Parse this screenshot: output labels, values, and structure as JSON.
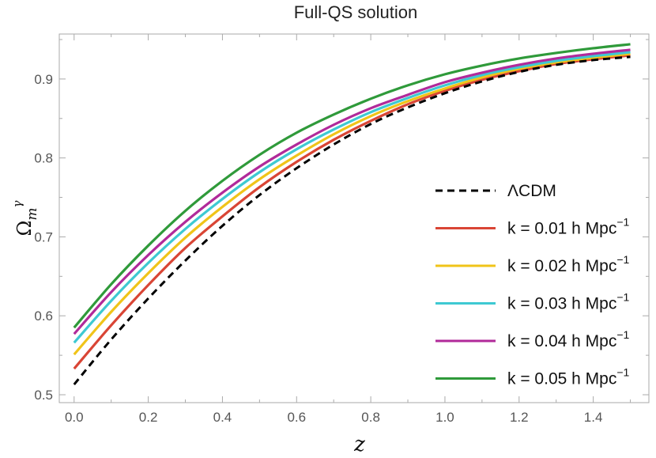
{
  "chart_data": {
    "type": "line",
    "title": "Full-QS solution",
    "xlabel": "z",
    "ylabel": {
      "base": "Ω",
      "subscript": "m",
      "superscript": "γ"
    },
    "xlim": [
      -0.04,
      1.55
    ],
    "ylim": [
      0.49,
      0.957
    ],
    "xticks": [
      0.0,
      0.2,
      0.4,
      0.6,
      0.8,
      1.0,
      1.2,
      1.4
    ],
    "xtick_labels": [
      "0.0",
      "0.2",
      "0.4",
      "0.6",
      "0.8",
      "1.0",
      "1.2",
      "1.4"
    ],
    "yticks": [
      0.5,
      0.6,
      0.7,
      0.8,
      0.9
    ],
    "ytick_labels": [
      "0.5",
      "0.6",
      "0.7",
      "0.8",
      "0.9"
    ],
    "x": [
      0.0,
      0.1,
      0.2,
      0.3,
      0.4,
      0.5,
      0.6,
      0.7,
      0.8,
      0.9,
      1.0,
      1.1,
      1.2,
      1.3,
      1.4,
      1.5
    ],
    "series": [
      {
        "name": "ΛCDM",
        "color": "#000000",
        "dash": true,
        "values": [
          0.513,
          0.57,
          0.622,
          0.67,
          0.714,
          0.753,
          0.787,
          0.817,
          0.843,
          0.864,
          0.882,
          0.897,
          0.909,
          0.918,
          0.924,
          0.928
        ]
      },
      {
        "name": "k = 0.01 h Mpc",
        "name_sup": "−1",
        "color": "#d94535",
        "values": [
          0.533,
          0.588,
          0.639,
          0.686,
          0.726,
          0.763,
          0.795,
          0.823,
          0.847,
          0.868,
          0.885,
          0.899,
          0.91,
          0.919,
          0.925,
          0.93
        ]
      },
      {
        "name": "k = 0.02 h Mpc",
        "name_sup": "−1",
        "color": "#f0c419",
        "values": [
          0.551,
          0.605,
          0.654,
          0.699,
          0.738,
          0.773,
          0.803,
          0.83,
          0.853,
          0.872,
          0.888,
          0.902,
          0.913,
          0.921,
          0.927,
          0.932
        ]
      },
      {
        "name": "k = 0.03 h Mpc",
        "name_sup": "−1",
        "color": "#3ec9d2",
        "values": [
          0.566,
          0.619,
          0.667,
          0.71,
          0.748,
          0.782,
          0.811,
          0.836,
          0.858,
          0.876,
          0.892,
          0.905,
          0.915,
          0.923,
          0.929,
          0.934
        ]
      },
      {
        "name": "k = 0.04 h Mpc",
        "name_sup": "−1",
        "color": "#b12a9a",
        "values": [
          0.577,
          0.63,
          0.677,
          0.719,
          0.756,
          0.789,
          0.817,
          0.842,
          0.863,
          0.88,
          0.896,
          0.908,
          0.918,
          0.926,
          0.932,
          0.937
        ]
      },
      {
        "name": "k = 0.05 h Mpc",
        "name_sup": "−1",
        "color": "#2f9a3a",
        "values": [
          0.585,
          0.64,
          0.689,
          0.733,
          0.771,
          0.804,
          0.832,
          0.855,
          0.875,
          0.892,
          0.906,
          0.917,
          0.926,
          0.933,
          0.939,
          0.944
        ]
      }
    ],
    "legend_position": "lower-right",
    "grid": false,
    "frame_color": "#aaaaaa"
  }
}
